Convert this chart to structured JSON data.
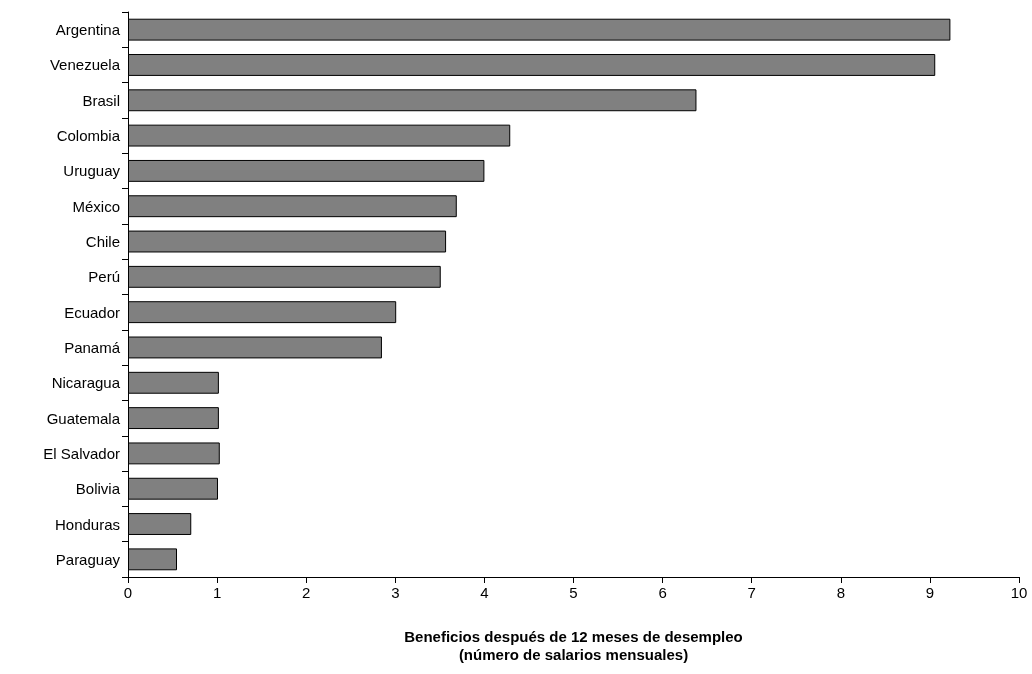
{
  "chart_data": {
    "type": "bar",
    "orientation": "horizontal",
    "xlabel": "Beneficios después de 12 meses de desempleo\n(número de salarios mensuales)",
    "categories": [
      "Argentina",
      "Venezuela",
      "Brasil",
      "Colombia",
      "Uruguay",
      "México",
      "Chile",
      "Perú",
      "Ecuador",
      "Panamá",
      "Nicaragua",
      "Guatemala",
      "El Salvador",
      "Bolivia",
      "Honduras",
      "Paraguay"
    ],
    "values": [
      9.23,
      9.06,
      6.38,
      4.29,
      4.0,
      3.69,
      3.57,
      3.51,
      3.01,
      2.85,
      1.02,
      1.02,
      1.03,
      1.01,
      0.71,
      0.55
    ],
    "color": "#808080",
    "xlim": [
      0,
      10
    ],
    "xticks": [
      0,
      1,
      2,
      3,
      4,
      5,
      6,
      7,
      8,
      9,
      10
    ],
    "grid": false
  }
}
